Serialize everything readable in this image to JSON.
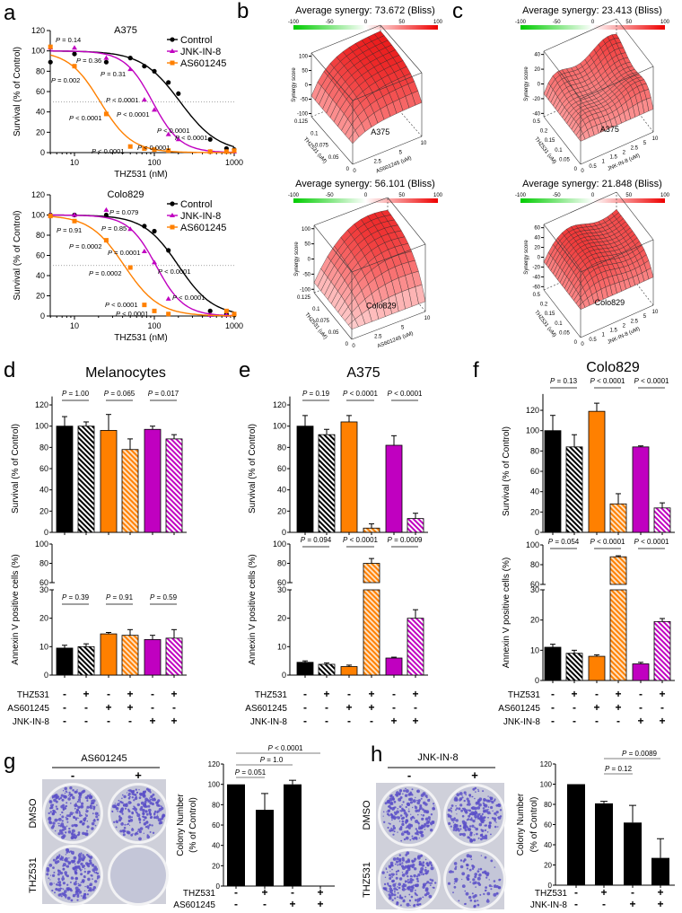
{
  "p_symbol": "P",
  "letters": {
    "a": "a",
    "b": "b",
    "c": "c",
    "d": "d",
    "e": "e",
    "f": "f",
    "g": "g",
    "h": "h"
  },
  "colors": {
    "control": "#000000",
    "jnk": "#c000c0",
    "as": "#ff8000",
    "colony": "#5a4fc8"
  },
  "panel_a": [
    {
      "title": "A375",
      "xlabel": "THZ531 (nM)",
      "ylabel": "Survival (% of Control)",
      "xticks": [
        "10",
        "100",
        "1000"
      ],
      "yticks": [
        "0",
        "20",
        "40",
        "60",
        "80",
        "100",
        "120"
      ],
      "legend": [
        "Control",
        "JNK-IN-8",
        "AS601245"
      ],
      "series": [
        {
          "name": "Control",
          "color": "#000000",
          "marker": "circle",
          "fit": {
            "ic50": 210,
            "hill": 1.8
          },
          "x": [
            5,
            10,
            25,
            50,
            75,
            100,
            150,
            200,
            500,
            800,
            1000
          ],
          "y": [
            89,
            97,
            89,
            93,
            85,
            80,
            69,
            58,
            13,
            4,
            3
          ]
        },
        {
          "name": "JNK-IN-8",
          "color": "#c000c0",
          "marker": "triangle",
          "fit": {
            "ic50": 95,
            "hill": 2.5
          },
          "x": [
            5,
            10,
            25,
            50,
            75,
            100,
            150,
            200,
            500,
            800,
            1000
          ],
          "y": [
            103,
            103,
            93,
            82,
            52,
            42,
            18,
            13,
            1,
            1,
            1
          ]
        },
        {
          "name": "AS601245",
          "color": "#ff8000",
          "marker": "square",
          "fit": {
            "ic50": 21,
            "hill": 2.2
          },
          "x": [
            5,
            10,
            25,
            50,
            75,
            100,
            150,
            500,
            800,
            1000
          ],
          "y": [
            104,
            85,
            38,
            6,
            4,
            3,
            2,
            1,
            1,
            2
          ]
        }
      ],
      "p_values": [
        "= 0.14",
        "= 0.36",
        "= 0.002",
        "= 0.31",
        "< 0.0001",
        "< 0.0001",
        "< 0.0001",
        "< 0.0001",
        "< 0.0001",
        "< 0.0001",
        "< 0.0001"
      ]
    },
    {
      "title": "Colo829",
      "xlabel": "THZ531 (nM)",
      "ylabel": "Survival (% of Control)",
      "xticks": [
        "10",
        "100",
        "1000"
      ],
      "yticks": [
        "0",
        "20",
        "40",
        "60",
        "80",
        "100",
        "120"
      ],
      "legend": [
        "Control",
        "JNK-IN-8",
        "AS601245"
      ],
      "series": [
        {
          "name": "Control",
          "color": "#000000",
          "marker": "circle",
          "fit": {
            "ic50": 200,
            "hill": 2.0
          },
          "x": [
            5,
            10,
            25,
            75,
            100,
            150,
            500,
            800,
            1000
          ],
          "y": [
            100,
            100,
            100,
            89,
            84,
            65,
            5,
            2,
            1
          ]
        },
        {
          "name": "JNK-IN-8",
          "color": "#c000c0",
          "marker": "triangle",
          "fit": {
            "ic50": 105,
            "hill": 2.5
          },
          "x": [
            5,
            10,
            25,
            50,
            75,
            100,
            150,
            500,
            800
          ],
          "y": [
            100,
            100,
            105,
            86,
            64,
            53,
            17,
            1,
            1
          ]
        },
        {
          "name": "AS601245",
          "color": "#ff8000",
          "marker": "square",
          "fit": {
            "ic50": 42,
            "hill": 2.0
          },
          "x": [
            5,
            10,
            25,
            50,
            75,
            100,
            150,
            800,
            1000
          ],
          "y": [
            99,
            94,
            75,
            48,
            11,
            5,
            2,
            5,
            2
          ]
        }
      ],
      "p_values": [
        "= 0.079",
        "= 0.91",
        "= 0.85",
        "= 0.0002",
        "= 0.0001",
        "= 0.0002",
        "< 0.0001",
        "< 0.0001",
        "< 0.0001",
        "< 0.0001"
      ]
    }
  ],
  "synergy": [
    {
      "title": "Average synergy: 73.672 (Bliss)",
      "cell": "A375",
      "zlabel": "Synergy score",
      "ylabel": "THZ531 (uM)",
      "xlabel": "AS601245 (uM)",
      "colorbar": [
        "-100",
        "-50",
        "0",
        "50",
        "100"
      ],
      "zticks": [
        "100",
        "50",
        "0",
        "-50",
        "-100"
      ],
      "yticks": [
        "0.125",
        "0.1",
        "0.075",
        "0.05",
        "0"
      ],
      "xticks": [
        "0",
        "2.5",
        "5",
        "10"
      ],
      "zrange": [
        -100,
        100
      ]
    },
    {
      "title": "Average synergy: 56.101 (Bliss)",
      "cell": "Colo829",
      "zlabel": "Synergy score",
      "ylabel": "THZ531 (uM)",
      "xlabel": "AS601245 (uM)",
      "colorbar": [
        "-100",
        "-50",
        "0",
        "50",
        "100"
      ],
      "zticks": [
        "100",
        "50",
        "0",
        "-50",
        "-100"
      ],
      "yticks": [
        "0.125",
        "0.1",
        "0.075",
        "0.05",
        "0"
      ],
      "xticks": [
        "0",
        "2.5",
        "5",
        "10"
      ],
      "zrange": [
        -100,
        100
      ]
    },
    {
      "title": "Average synergy: 23.413 (Bliss)",
      "cell": "A375",
      "zlabel": "Synergy score",
      "ylabel": "THZ531 (uM)",
      "xlabel": "JNK-IN-8 (uM)",
      "colorbar": [
        "-100",
        "-50",
        "0",
        "50",
        "100"
      ],
      "zticks": [
        "40",
        "20",
        "0",
        "-20",
        "-40"
      ],
      "yticks": [
        "0.5",
        "0.2",
        "0.15",
        "0.1",
        "0.05",
        "0"
      ],
      "xticks": [
        "0",
        "0.5",
        "1",
        "1.5",
        "2",
        "2.5",
        "5",
        "10"
      ],
      "zrange": [
        -50,
        50
      ]
    },
    {
      "title": "Average synergy: 21.848 (Bliss)",
      "cell": "Colo829",
      "zlabel": "Synergy score",
      "ylabel": "THZ531 (uM)",
      "xlabel": "JNK-IN-8 (uM)",
      "colorbar": [
        "-100",
        "-50",
        "0",
        "50",
        "100"
      ],
      "zticks": [
        "60",
        "40",
        "20",
        "0",
        "-20",
        "-40",
        "-60"
      ],
      "yticks": [
        "0.5",
        "0.2",
        "0.15",
        "0.1",
        "0.05",
        "0"
      ],
      "xticks": [
        "0",
        "0.5",
        "1",
        "1.5",
        "2",
        "2.5",
        "5",
        "10"
      ],
      "zrange": [
        -70,
        70
      ]
    }
  ],
  "bar_panels": {
    "d": {
      "title": "Melanocytes",
      "survival": {
        "ylabel": "Survival (% of Control)",
        "yticks": [
          "0",
          "20",
          "40",
          "60",
          "80",
          "100",
          "120"
        ],
        "mean": [
          100,
          100,
          96,
          78,
          97,
          88
        ],
        "sd": [
          9,
          4,
          15,
          10,
          3,
          4
        ],
        "p": [
          "= 1.00",
          "= 0.065",
          "= 0.017"
        ]
      },
      "annexin": {
        "ylabel": "Annexin V positive cells (%)",
        "yticks_low": [
          "0",
          "10",
          "20",
          "30"
        ],
        "yticks_high": [
          "60",
          "80",
          "100"
        ],
        "mean": [
          9.5,
          10,
          14.5,
          14,
          12.5,
          13
        ],
        "sd": [
          1,
          1,
          0.5,
          2,
          1.5,
          3
        ],
        "p": [
          "= 0.39",
          "= 0.91",
          "= 0.59"
        ]
      },
      "conditions": [
        {
          "label": "THZ531",
          "signs": [
            "-",
            "+",
            "-",
            "+",
            "-",
            "+"
          ]
        },
        {
          "label": "AS601245",
          "signs": [
            "-",
            "-",
            "+",
            "+",
            "-",
            "-"
          ]
        },
        {
          "label": "JNK-IN-8",
          "signs": [
            "-",
            "-",
            "-",
            "-",
            "+",
            "+"
          ]
        }
      ]
    },
    "e": {
      "title": "A375",
      "survival": {
        "ylabel": "Survival (% of Control)",
        "yticks": [
          "0",
          "20",
          "40",
          "60",
          "80",
          "100",
          "120"
        ],
        "mean": [
          100,
          92,
          104,
          4,
          82,
          13
        ],
        "sd": [
          10,
          5,
          6,
          4,
          9,
          5
        ],
        "p": [
          "= 0.19",
          "< 0.0001",
          "< 0.0001"
        ]
      },
      "annexin": {
        "ylabel": "Annexin V positive cells (%)",
        "yticks_low": [
          "0",
          "10",
          "20",
          "30"
        ],
        "yticks_high": [
          "60",
          "80",
          "100"
        ],
        "mean": [
          4.5,
          3.8,
          3,
          80,
          6,
          20
        ],
        "sd": [
          0.5,
          0.5,
          0.5,
          5,
          0.3,
          3
        ],
        "p": [
          "= 0.094",
          "< 0.0001",
          "= 0.0009"
        ]
      },
      "conditions": [
        {
          "label": "THZ531",
          "signs": [
            "-",
            "+",
            "-",
            "+",
            "-",
            "+"
          ]
        },
        {
          "label": "AS601245",
          "signs": [
            "-",
            "-",
            "+",
            "+",
            "-",
            "-"
          ]
        },
        {
          "label": "JNK-IN-8",
          "signs": [
            "-",
            "-",
            "-",
            "-",
            "+",
            "+"
          ]
        }
      ]
    },
    "f": {
      "title": "Colo829",
      "survival": {
        "ylabel": "Survival (% of Control)",
        "yticks": [
          "0",
          "20",
          "40",
          "60",
          "80",
          "100",
          "120"
        ],
        "mean": [
          100,
          84,
          119,
          28,
          84,
          24
        ],
        "sd": [
          15,
          12,
          8,
          10,
          1,
          5
        ],
        "p": [
          "= 0.13",
          "< 0.0001",
          "< 0.0001"
        ]
      },
      "annexin": {
        "ylabel": "Annexin V positive cells (%)",
        "yticks_low": [
          "0",
          "10",
          "20",
          "30"
        ],
        "yticks_high": [
          "60",
          "80",
          "100"
        ],
        "mean": [
          11,
          9,
          8,
          88,
          5.5,
          19.5
        ],
        "sd": [
          1,
          1,
          0.5,
          1,
          0.5,
          1
        ],
        "p": [
          "= 0.054",
          "< 0.0001",
          "< 0.0001"
        ]
      },
      "conditions": [
        {
          "label": "THZ531",
          "signs": [
            "-",
            "+",
            "-",
            "+",
            "-",
            "+"
          ]
        },
        {
          "label": "AS601245",
          "signs": [
            "-",
            "-",
            "+",
            "+",
            "-",
            "-"
          ]
        },
        {
          "label": "JNK-IN-8",
          "signs": [
            "-",
            "-",
            "-",
            "-",
            "+",
            "+"
          ]
        }
      ]
    }
  },
  "colony_panels": {
    "g": {
      "drug": "AS601245",
      "col_signs": [
        "-",
        "+"
      ],
      "row_labels": [
        "DMSO",
        "THZ531"
      ],
      "plate_density": [
        1,
        1,
        1,
        0
      ],
      "ylabel": [
        "Colony Number",
        "(% of Control)"
      ],
      "yticks": [
        "0",
        "20",
        "40",
        "60",
        "80",
        "100",
        "120"
      ],
      "mean": [
        100,
        75,
        100,
        0
      ],
      "sd": [
        0,
        16,
        4,
        0
      ],
      "p": [
        "= 0.051",
        "= 1.0",
        "< 0.0001"
      ],
      "conditions": [
        {
          "label": "THZ531",
          "signs": [
            "-",
            "+",
            "-",
            "+"
          ]
        },
        {
          "label": "AS601245",
          "signs": [
            "-",
            "-",
            "+",
            "+"
          ]
        }
      ]
    },
    "h": {
      "drug": "JNK-IN-8",
      "col_signs": [
        "-",
        "+"
      ],
      "row_labels": [
        "DMSO",
        "THZ531"
      ],
      "plate_density": [
        1,
        1,
        1,
        0.45
      ],
      "ylabel": [
        "Colony Number",
        "(% of Control)"
      ],
      "yticks": [
        "0",
        "20",
        "40",
        "60",
        "80",
        "100",
        "120"
      ],
      "mean": [
        100,
        81,
        62,
        27
      ],
      "sd": [
        0,
        2,
        17,
        19
      ],
      "p": [
        "= 0.12",
        "= 0.0089"
      ],
      "conditions": [
        {
          "label": "THZ531",
          "signs": [
            "-",
            "+",
            "-",
            "+"
          ]
        },
        {
          "label": "JNK-IN-8",
          "signs": [
            "-",
            "-",
            "+",
            "+"
          ]
        }
      ]
    }
  }
}
